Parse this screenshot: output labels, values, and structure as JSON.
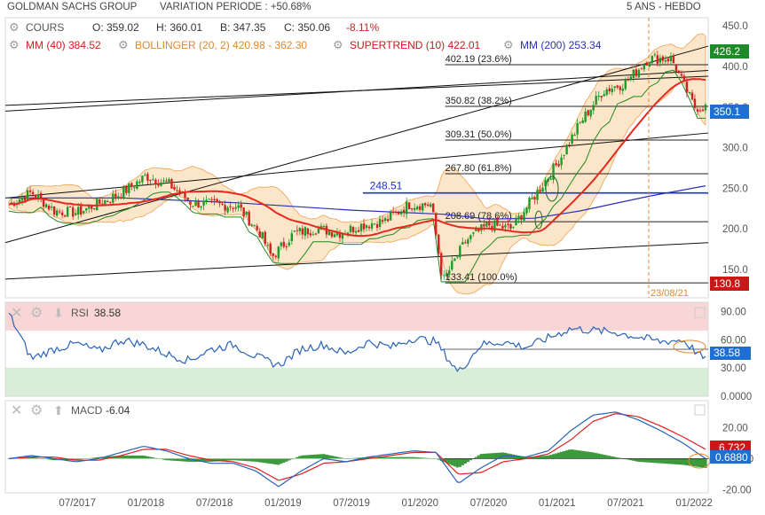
{
  "header": {
    "company": "GOLDMAN SACHS GROUP",
    "variation": "VARIATION PERIODE : +50.68%",
    "period": "5 ANS - HEBDO"
  },
  "quote": {
    "label": "COURS",
    "open": "O: 359.02",
    "high": "H: 360.01",
    "low": "B: 347.35",
    "close": "C: 350.06",
    "change": "-8.11%"
  },
  "indicators": {
    "mm40": "MM (40) 384.52",
    "bollinger": "BOLLINGER (20, 2) 420.98 - 362.30",
    "supertrend": "SUPERTREND (10) 422.01",
    "mm200": "MM (200) 253.34"
  },
  "fibonacci": [
    {
      "label": "402.19 (23.6%)",
      "value": 402.19
    },
    {
      "label": "350.82 (38.2%)",
      "value": 350.82
    },
    {
      "label": "309.31 (50.0%)",
      "value": 309.31
    },
    {
      "label": "267.80 (61.8%)",
      "value": 267.8
    },
    {
      "label": "208.69 (78.6%)",
      "value": 208.69
    },
    {
      "label": "133.41 (100.0%)",
      "value": 133.41
    }
  ],
  "support_label": "248.51",
  "date_marker": "23/08/21",
  "price_badges": {
    "high": "426.2",
    "last": "350.1",
    "low": "130.8"
  },
  "rsi": {
    "label": "RSI",
    "value": "38.58"
  },
  "macd": {
    "label": "MACD",
    "value": "-6.04",
    "badge_red": "6.732",
    "badge_blue": "0.6880"
  },
  "colors": {
    "candle_up": "#1e9a28",
    "candle_down": "#d42020",
    "mm40": "#e8281e",
    "mm200": "#2830b8",
    "bollinger_fill": "#fbe3c4",
    "bollinger_line": "#f0a050",
    "supertrend": "#1e8a1e",
    "rsi_line": "#2a62b8",
    "macd_line": "#2a62b8",
    "macd_signal": "#e02020",
    "macd_hist": "#3a9a3a",
    "badge_green": "#1f8a2a",
    "badge_blue": "#1f6fd0",
    "badge_red": "#c81818"
  },
  "chart_data": [
    {
      "type": "candlestick",
      "title": "GOLDMAN SACHS GROUP",
      "ylim": [
        115,
        460
      ],
      "y_ticks": [
        150,
        200,
        250,
        300,
        350,
        400,
        450
      ],
      "y_tick_labels": [
        "150.0",
        "200.0",
        "250.0",
        "300.0",
        "350.0",
        "400.0",
        "450.0"
      ],
      "x_tick_labels": [
        "07/2017",
        "01/2018",
        "07/2018",
        "01/2019",
        "07/2019",
        "01/2020",
        "07/2020",
        "01/2021",
        "07/2021",
        "01/2022"
      ],
      "close_series_approx": [
        {
          "x": "2017-01",
          "y": 230
        },
        {
          "x": "2017-03",
          "y": 245
        },
        {
          "x": "2017-05",
          "y": 222
        },
        {
          "x": "2017-07",
          "y": 220
        },
        {
          "x": "2017-09",
          "y": 232
        },
        {
          "x": "2017-11",
          "y": 245
        },
        {
          "x": "2018-01",
          "y": 265
        },
        {
          "x": "2018-03",
          "y": 255
        },
        {
          "x": "2018-05",
          "y": 232
        },
        {
          "x": "2018-07",
          "y": 230
        },
        {
          "x": "2018-09",
          "y": 228
        },
        {
          "x": "2018-11",
          "y": 195
        },
        {
          "x": "2018-12",
          "y": 165
        },
        {
          "x": "2019-02",
          "y": 195
        },
        {
          "x": "2019-04",
          "y": 200
        },
        {
          "x": "2019-06",
          "y": 195
        },
        {
          "x": "2019-08",
          "y": 205
        },
        {
          "x": "2019-10",
          "y": 210
        },
        {
          "x": "2019-12",
          "y": 230
        },
        {
          "x": "2020-02",
          "y": 230
        },
        {
          "x": "2020-03",
          "y": 135
        },
        {
          "x": "2020-05",
          "y": 185
        },
        {
          "x": "2020-07",
          "y": 205
        },
        {
          "x": "2020-09",
          "y": 200
        },
        {
          "x": "2020-11",
          "y": 240
        },
        {
          "x": "2021-01",
          "y": 280
        },
        {
          "x": "2021-03",
          "y": 330
        },
        {
          "x": "2021-05",
          "y": 370
        },
        {
          "x": "2021-07",
          "y": 380
        },
        {
          "x": "2021-09",
          "y": 410
        },
        {
          "x": "2021-11",
          "y": 410
        },
        {
          "x": "2022-01",
          "y": 350
        }
      ]
    },
    {
      "type": "line",
      "title": "RSI",
      "ylim": [
        0,
        100
      ],
      "y_tick_labels": [
        "90.00",
        "60.00",
        "30.00",
        "0.0000"
      ],
      "overbought": 70,
      "oversold": 30,
      "series": [
        {
          "name": "RSI",
          "values": [
            88,
            40,
            50,
            56,
            48,
            60,
            55,
            45,
            38,
            50,
            55,
            42,
            33,
            50,
            55,
            45,
            58,
            52,
            62,
            58,
            25,
            55,
            58,
            52,
            62,
            72,
            70,
            68,
            63,
            58,
            60,
            38
          ]
        }
      ]
    },
    {
      "type": "line",
      "title": "MACD",
      "ylim": [
        -22,
        35
      ],
      "y_tick_labels": [
        "20.00",
        "0.0000",
        "-20.00"
      ],
      "series": [
        {
          "name": "MACD",
          "values": [
            0,
            2,
            0,
            -2,
            0,
            4,
            8,
            5,
            0,
            -3,
            -3,
            -8,
            -18,
            -8,
            0,
            -2,
            1,
            3,
            5,
            4,
            -16,
            -6,
            2,
            1,
            5,
            18,
            28,
            30,
            25,
            18,
            10,
            0
          ]
        },
        {
          "name": "Signal",
          "values": [
            0,
            1,
            1,
            -1,
            -1,
            2,
            6,
            6,
            2,
            -1,
            -2,
            -6,
            -14,
            -10,
            -3,
            -2,
            0,
            2,
            4,
            4,
            -10,
            -9,
            -2,
            0,
            3,
            12,
            24,
            29,
            27,
            21,
            14,
            6
          ]
        }
      ]
    }
  ]
}
